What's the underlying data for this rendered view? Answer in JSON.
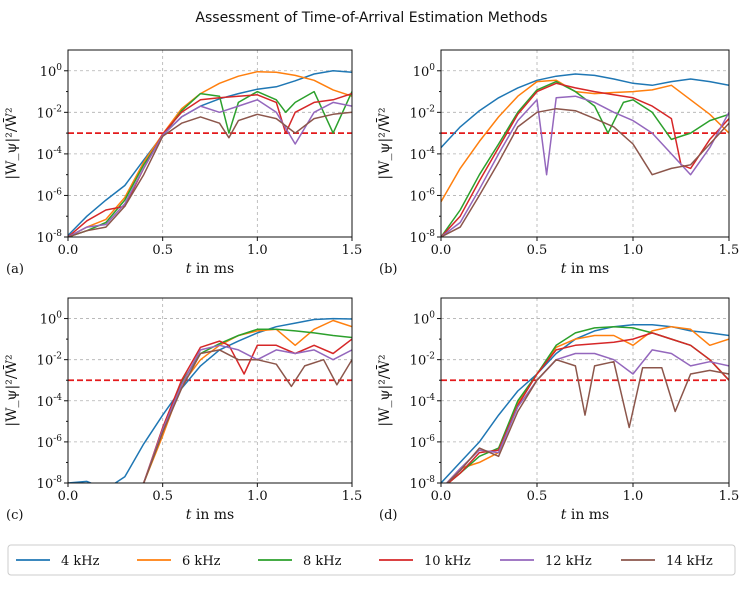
{
  "figure": {
    "title": "Assessment of Time-of-Arrival Estimation Methods"
  },
  "colors": {
    "4 kHz": "#1f77b4",
    "6 kHz": "#ff7f0e",
    "8 kHz": "#2ca02c",
    "10 kHz": "#d62728",
    "12 kHz": "#9467bd",
    "14 kHz": "#8c564b",
    "threshold": "#e41a1c",
    "grid": "#b0b0b0"
  },
  "chart_data": [
    {
      "type": "line",
      "panel_label": "(a)",
      "xlabel_var": "t",
      "xlabel_rest": " in ms",
      "ylabel": "|W_ψ|²/W̄²",
      "xlim": [
        0,
        1.5
      ],
      "ylim": [
        1e-08,
        10
      ],
      "yscale": "log",
      "grid": true,
      "xticks": [
        "0.0",
        "0.5",
        "1.0",
        "1.5"
      ],
      "threshold": 0.001,
      "series": [
        {
          "name": "4 kHz",
          "x": [
            0,
            0.1,
            0.2,
            0.3,
            0.4,
            0.5,
            0.6,
            0.7,
            0.8,
            0.9,
            1.0,
            1.1,
            1.2,
            1.3,
            1.4,
            1.5
          ],
          "y": [
            1.2e-08,
            1e-07,
            6e-07,
            3e-06,
            5e-05,
            0.0008,
            0.006,
            0.02,
            0.045,
            0.08,
            0.13,
            0.17,
            0.33,
            0.7,
            1.0,
            0.85
          ]
        },
        {
          "name": "6 kHz",
          "x": [
            0,
            0.1,
            0.2,
            0.3,
            0.4,
            0.5,
            0.6,
            0.7,
            0.8,
            0.9,
            1.0,
            1.1,
            1.2,
            1.3,
            1.4,
            1.5
          ],
          "y": [
            1e-08,
            3e-08,
            7e-08,
            8e-07,
            4e-05,
            0.0009,
            0.015,
            0.08,
            0.25,
            0.55,
            0.9,
            0.85,
            0.6,
            0.35,
            0.12,
            0.06
          ]
        },
        {
          "name": "8 kHz",
          "x": [
            0,
            0.1,
            0.2,
            0.3,
            0.4,
            0.5,
            0.6,
            0.7,
            0.8,
            0.85,
            0.9,
            1.0,
            1.1,
            1.15,
            1.2,
            1.3,
            1.4,
            1.5
          ],
          "y": [
            1e-08,
            2e-08,
            5e-08,
            6e-07,
            3e-05,
            0.0007,
            0.012,
            0.08,
            0.06,
            0.001,
            0.03,
            0.1,
            0.04,
            0.01,
            0.03,
            0.1,
            0.001,
            0.1
          ]
        },
        {
          "name": "10 kHz",
          "x": [
            0,
            0.1,
            0.2,
            0.3,
            0.4,
            0.5,
            0.6,
            0.7,
            0.8,
            0.9,
            1.0,
            1.1,
            1.15,
            1.2,
            1.3,
            1.4,
            1.5
          ],
          "y": [
            1e-08,
            6e-08,
            2e-07,
            3e-07,
            2e-05,
            0.0009,
            0.01,
            0.04,
            0.05,
            0.06,
            0.07,
            0.03,
            0.001,
            0.01,
            0.03,
            0.04,
            0.08
          ]
        },
        {
          "name": "12 kHz",
          "x": [
            0,
            0.1,
            0.2,
            0.3,
            0.4,
            0.5,
            0.6,
            0.7,
            0.8,
            0.9,
            1.0,
            1.1,
            1.2,
            1.3,
            1.4,
            1.5
          ],
          "y": [
            1e-08,
            3e-08,
            4e-08,
            4e-07,
            2e-05,
            0.0008,
            0.006,
            0.02,
            0.01,
            0.02,
            0.04,
            0.01,
            0.0003,
            0.01,
            0.03,
            0.02
          ]
        },
        {
          "name": "14 kHz",
          "x": [
            0,
            0.1,
            0.2,
            0.3,
            0.4,
            0.5,
            0.6,
            0.7,
            0.8,
            0.85,
            0.9,
            1.0,
            1.1,
            1.2,
            1.3,
            1.4,
            1.5
          ],
          "y": [
            1e-08,
            2e-08,
            3e-08,
            3e-07,
            1e-05,
            0.0007,
            0.003,
            0.006,
            0.003,
            0.0006,
            0.004,
            0.008,
            0.005,
            0.001,
            0.005,
            0.008,
            0.01
          ]
        }
      ]
    },
    {
      "type": "line",
      "panel_label": "(b)",
      "xlabel_var": "t",
      "xlabel_rest": " in ms",
      "ylabel": "|W_ψ|²/W̄²",
      "xlim": [
        0,
        1.5
      ],
      "ylim": [
        1e-08,
        10
      ],
      "yscale": "log",
      "grid": true,
      "xticks": [
        "0.0",
        "0.5",
        "1.0",
        "1.5"
      ],
      "threshold": 0.001,
      "series": [
        {
          "name": "4 kHz",
          "x": [
            0,
            0.1,
            0.2,
            0.3,
            0.4,
            0.5,
            0.6,
            0.7,
            0.8,
            0.9,
            1.0,
            1.1,
            1.2,
            1.3,
            1.4,
            1.5
          ],
          "y": [
            0.0002,
            0.002,
            0.012,
            0.05,
            0.15,
            0.35,
            0.55,
            0.7,
            0.6,
            0.4,
            0.25,
            0.2,
            0.3,
            0.4,
            0.3,
            0.2
          ]
        },
        {
          "name": "6 kHz",
          "x": [
            0,
            0.1,
            0.2,
            0.3,
            0.4,
            0.5,
            0.6,
            0.7,
            0.8,
            0.9,
            1.0,
            1.1,
            1.2,
            1.3,
            1.4,
            1.5
          ],
          "y": [
            5e-07,
            2e-05,
            0.0004,
            0.006,
            0.06,
            0.3,
            0.35,
            0.1,
            0.08,
            0.09,
            0.1,
            0.12,
            0.2,
            0.04,
            0.008,
            0.001
          ]
        },
        {
          "name": "8 kHz",
          "x": [
            0,
            0.1,
            0.2,
            0.3,
            0.4,
            0.5,
            0.6,
            0.7,
            0.8,
            0.87,
            0.95,
            1.0,
            1.1,
            1.2,
            1.3,
            1.4,
            1.5
          ],
          "y": [
            1e-08,
            2e-07,
            1e-05,
            0.0003,
            0.01,
            0.12,
            0.3,
            0.1,
            0.02,
            0.001,
            0.03,
            0.04,
            0.01,
            0.0005,
            0.001,
            0.004,
            0.008
          ]
        },
        {
          "name": "10 kHz",
          "x": [
            0,
            0.1,
            0.2,
            0.3,
            0.4,
            0.5,
            0.6,
            0.7,
            0.8,
            0.9,
            1.0,
            1.1,
            1.2,
            1.25,
            1.3,
            1.4,
            1.5
          ],
          "y": [
            1e-08,
            1e-07,
            5e-06,
            0.0002,
            0.008,
            0.1,
            0.25,
            0.15,
            0.1,
            0.07,
            0.05,
            0.02,
            0.005,
            3e-05,
            2e-05,
            0.0005,
            0.005
          ]
        },
        {
          "name": "12 kHz",
          "x": [
            0,
            0.1,
            0.2,
            0.3,
            0.4,
            0.5,
            0.55,
            0.6,
            0.7,
            0.8,
            0.9,
            1.0,
            1.1,
            1.2,
            1.3,
            1.4,
            1.5
          ],
          "y": [
            1e-08,
            5e-08,
            2e-06,
            0.0001,
            0.004,
            0.04,
            1e-05,
            0.05,
            0.06,
            0.03,
            0.01,
            0.004,
            0.001,
            0.0001,
            1e-05,
            0.0002,
            0.01
          ]
        },
        {
          "name": "14 kHz",
          "x": [
            0,
            0.1,
            0.2,
            0.3,
            0.4,
            0.5,
            0.6,
            0.7,
            0.8,
            0.9,
            1.0,
            1.1,
            1.2,
            1.3,
            1.4,
            1.5
          ],
          "y": [
            1e-08,
            3e-08,
            1e-06,
            4e-05,
            0.002,
            0.01,
            0.015,
            0.012,
            0.005,
            0.002,
            0.0003,
            1e-05,
            2e-05,
            3e-05,
            0.0003,
            0.003
          ]
        }
      ]
    },
    {
      "type": "line",
      "panel_label": "(c)",
      "xlabel_var": "t",
      "xlabel_rest": " in ms",
      "ylabel": "|W_ψ|²/W̄²",
      "xlim": [
        0,
        1.5
      ],
      "ylim": [
        1e-08,
        10
      ],
      "yscale": "log",
      "grid": true,
      "xticks": [
        "0.0",
        "0.5",
        "1.0",
        "1.5"
      ],
      "threshold": 0.001,
      "series": [
        {
          "name": "4 kHz",
          "x": [
            0,
            0.1,
            0.2,
            0.3,
            0.4,
            0.5,
            0.6,
            0.7,
            0.8,
            0.9,
            1.0,
            1.1,
            1.2,
            1.3,
            1.4,
            1.5
          ],
          "y": [
            1e-08,
            1.2e-08,
            5e-09,
            2e-08,
            8e-07,
            2e-05,
            0.0004,
            0.005,
            0.03,
            0.08,
            0.2,
            0.4,
            0.6,
            0.9,
            1.0,
            0.95
          ]
        },
        {
          "name": "6 kHz",
          "x": [
            0,
            0.1,
            0.2,
            0.3,
            0.4,
            0.5,
            0.6,
            0.7,
            0.8,
            0.9,
            1.0,
            1.1,
            1.2,
            1.3,
            1.4,
            1.5
          ],
          "y": [
            1e-08,
            5e-09,
            8e-09,
            5e-09,
            1e-08,
            2e-06,
            0.0006,
            0.01,
            0.05,
            0.15,
            0.25,
            0.3,
            0.05,
            0.3,
            0.8,
            0.4
          ]
        },
        {
          "name": "8 kHz",
          "x": [
            0,
            0.1,
            0.2,
            0.3,
            0.4,
            0.5,
            0.6,
            0.7,
            0.8,
            0.9,
            1.0,
            1.1,
            1.2,
            1.3,
            1.4,
            1.5
          ],
          "y": [
            1e-08,
            5e-09,
            5e-09,
            5e-09,
            1e-08,
            3e-06,
            0.0008,
            0.02,
            0.06,
            0.15,
            0.3,
            0.3,
            0.25,
            0.2,
            0.15,
            0.12
          ]
        },
        {
          "name": "10 kHz",
          "x": [
            0,
            0.1,
            0.2,
            0.3,
            0.4,
            0.5,
            0.6,
            0.7,
            0.8,
            0.85,
            0.93,
            1.0,
            1.1,
            1.2,
            1.3,
            1.4,
            1.5
          ],
          "y": [
            1e-08,
            5e-09,
            5e-09,
            5e-09,
            1e-08,
            5e-06,
            0.001,
            0.04,
            0.08,
            0.05,
            0.002,
            0.05,
            0.05,
            0.02,
            0.05,
            0.02,
            0.1
          ]
        },
        {
          "name": "12 kHz",
          "x": [
            0,
            0.1,
            0.2,
            0.3,
            0.4,
            0.5,
            0.6,
            0.7,
            0.8,
            0.9,
            1.0,
            1.1,
            1.2,
            1.3,
            1.4,
            1.5
          ],
          "y": [
            1e-08,
            5e-09,
            5e-09,
            5e-09,
            1e-08,
            4e-06,
            0.0006,
            0.03,
            0.05,
            0.03,
            0.01,
            0.03,
            0.02,
            0.03,
            0.01,
            0.03
          ]
        },
        {
          "name": "14 kHz",
          "x": [
            0,
            0.1,
            0.2,
            0.3,
            0.4,
            0.5,
            0.6,
            0.7,
            0.8,
            0.9,
            1.0,
            1.1,
            1.18,
            1.25,
            1.35,
            1.42,
            1.5
          ],
          "y": [
            1e-08,
            5e-09,
            5e-09,
            5e-09,
            1e-08,
            3e-06,
            0.0004,
            0.02,
            0.03,
            0.01,
            0.01,
            0.006,
            0.0005,
            0.005,
            0.01,
            0.0006,
            0.01
          ]
        }
      ]
    },
    {
      "type": "line",
      "panel_label": "(d)",
      "xlabel_var": "t",
      "xlabel_rest": " in ms",
      "ylabel": "|W_ψ|²/W̄²",
      "xlim": [
        0,
        1.5
      ],
      "ylim": [
        1e-08,
        10
      ],
      "yscale": "log",
      "grid": true,
      "xticks": [
        "0.0",
        "0.5",
        "1.0",
        "1.5"
      ],
      "threshold": 0.001,
      "series": [
        {
          "name": "4 kHz",
          "x": [
            0,
            0.1,
            0.2,
            0.3,
            0.4,
            0.5,
            0.6,
            0.7,
            0.8,
            0.9,
            1.0,
            1.1,
            1.2,
            1.3,
            1.4,
            1.5
          ],
          "y": [
            1e-08,
            1e-07,
            1e-06,
            2e-05,
            0.0003,
            0.002,
            0.02,
            0.1,
            0.25,
            0.4,
            0.5,
            0.5,
            0.4,
            0.25,
            0.2,
            0.15
          ]
        },
        {
          "name": "6 kHz",
          "x": [
            0,
            0.1,
            0.2,
            0.3,
            0.4,
            0.5,
            0.6,
            0.7,
            0.8,
            0.9,
            1.0,
            1.1,
            1.2,
            1.3,
            1.4,
            1.5
          ],
          "y": [
            5e-09,
            5e-08,
            1e-07,
            3e-07,
            8e-05,
            0.002,
            0.04,
            0.1,
            0.15,
            0.15,
            0.05,
            0.25,
            0.4,
            0.3,
            0.05,
            0.1
          ]
        },
        {
          "name": "8 kHz",
          "x": [
            0,
            0.1,
            0.2,
            0.3,
            0.4,
            0.5,
            0.6,
            0.7,
            0.8,
            0.9,
            1.0,
            1.1,
            1.2,
            1.3,
            1.4,
            1.5
          ],
          "y": [
            5e-09,
            3e-08,
            2e-07,
            5e-07,
            0.0001,
            0.002,
            0.05,
            0.2,
            0.35,
            0.4,
            0.35,
            0.2,
            0.1,
            0.05,
            0.01,
            0.001
          ]
        },
        {
          "name": "10 kHz",
          "x": [
            0,
            0.1,
            0.2,
            0.3,
            0.4,
            0.5,
            0.6,
            0.7,
            0.8,
            0.9,
            1.0,
            1.1,
            1.2,
            1.3,
            1.4,
            1.5
          ],
          "y": [
            5e-09,
            3e-08,
            3e-07,
            4e-07,
            6e-05,
            0.002,
            0.03,
            0.05,
            0.06,
            0.07,
            0.1,
            0.2,
            0.1,
            0.05,
            0.01,
            0.001
          ]
        },
        {
          "name": "12 kHz",
          "x": [
            0,
            0.1,
            0.2,
            0.3,
            0.4,
            0.5,
            0.6,
            0.7,
            0.8,
            0.9,
            1.0,
            1.1,
            1.2,
            1.3,
            1.4,
            1.5
          ],
          "y": [
            5e-09,
            5e-08,
            4e-07,
            3e-07,
            5e-05,
            0.001,
            0.01,
            0.02,
            0.02,
            0.01,
            0.002,
            0.03,
            0.02,
            0.005,
            0.008,
            0.005
          ]
        },
        {
          "name": "14 kHz",
          "x": [
            0,
            0.1,
            0.2,
            0.3,
            0.4,
            0.5,
            0.6,
            0.7,
            0.75,
            0.8,
            0.9,
            0.98,
            1.05,
            1.15,
            1.22,
            1.3,
            1.4,
            1.5
          ],
          "y": [
            5e-09,
            4e-08,
            5e-07,
            2e-07,
            3e-05,
            0.001,
            0.01,
            0.005,
            2e-05,
            0.005,
            0.008,
            5e-06,
            0.004,
            0.004,
            3e-05,
            0.002,
            0.003,
            0.002
          ]
        }
      ]
    }
  ]
}
